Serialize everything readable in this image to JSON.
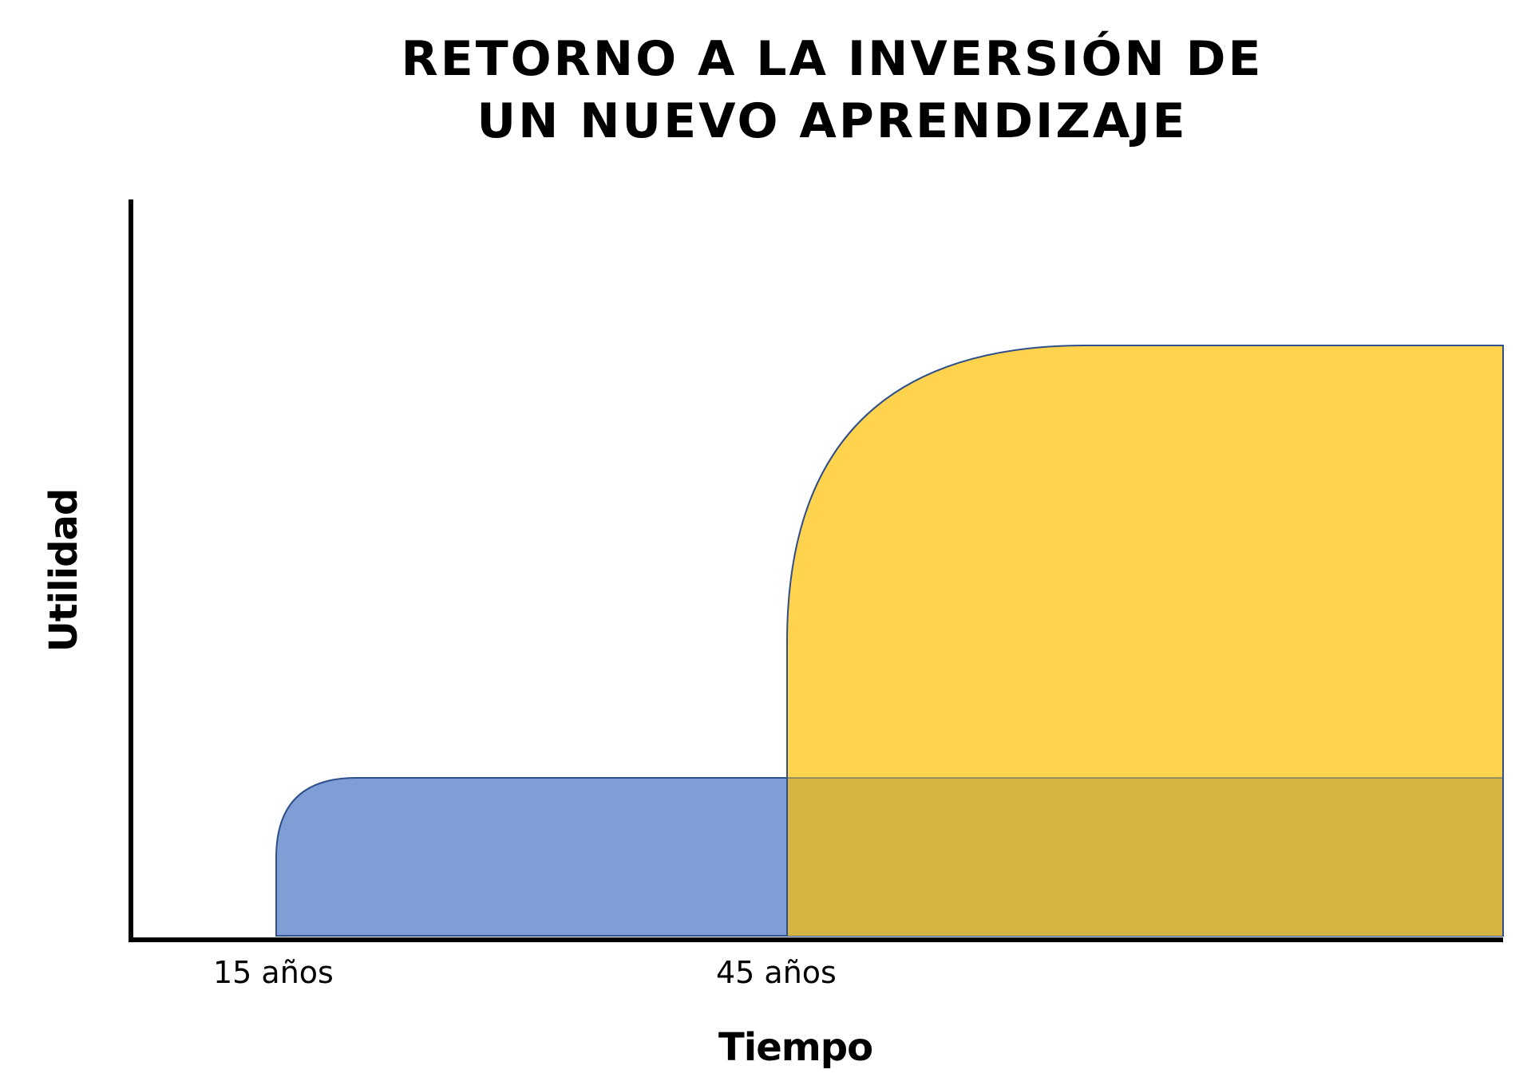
{
  "title": {
    "line1": "RETORNO A LA INVERSIÓN DE",
    "line2": "UN NUEVO APRENDIZAJE"
  },
  "axes": {
    "x_label": "Tiempo",
    "y_label": "Utilidad",
    "x_ticks": [
      "15 años",
      "45 años"
    ]
  },
  "shapes": {
    "first_learning": {
      "fill": "#7F9ED6",
      "stroke": "#2F4F8A",
      "start_tick": "15 años"
    },
    "new_learning": {
      "fill": "#FFD34D",
      "stroke": "#2F4F8A",
      "start_tick": "45 años"
    },
    "overlap": {
      "fill": "#D6B441"
    }
  }
}
